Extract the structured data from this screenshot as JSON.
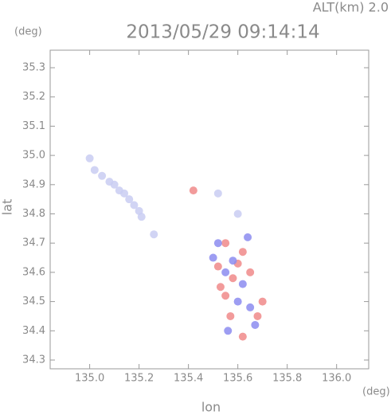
{
  "chart_data": {
    "type": "scatter",
    "title": "2013/05/29 09:14:14",
    "annotation": "ALT(km) 2.0",
    "y_unit": "(deg)",
    "x_unit": "(deg)",
    "ylabel": "lat",
    "xlabel": "lon",
    "xlim": [
      134.84,
      136.13
    ],
    "ylim": [
      34.27,
      35.36
    ],
    "xticks": [
      {
        "value": 135.0,
        "label": "135.0"
      },
      135.2,
      135.4,
      135.6,
      135.8,
      {
        "value": 136.0,
        "label": "136.0"
      }
    ],
    "yticks": [
      34.3,
      34.4,
      34.5,
      34.6,
      34.7,
      34.8,
      34.9,
      {
        "value": 35.0,
        "label": "35.0"
      },
      35.1,
      35.2,
      35.3
    ],
    "series": [
      {
        "color": "#c9ccf2",
        "x": [
          135.0,
          135.02,
          135.05,
          135.08,
          135.1,
          135.12,
          135.14,
          135.16,
          135.18,
          135.2,
          135.21,
          135.26,
          135.52,
          135.6
        ],
        "y": [
          34.99,
          34.95,
          34.93,
          34.91,
          34.9,
          34.88,
          34.87,
          34.85,
          34.83,
          34.81,
          34.79,
          34.73,
          34.87,
          34.8
        ]
      },
      {
        "color": "#f08a8a",
        "x": [
          135.42,
          135.55,
          135.62,
          135.52,
          135.58,
          135.65,
          135.55,
          135.68,
          135.62,
          135.57,
          135.7,
          135.6,
          135.53
        ],
        "y": [
          34.88,
          34.7,
          34.67,
          34.62,
          34.58,
          34.6,
          34.52,
          34.45,
          34.38,
          34.45,
          34.5,
          34.63,
          34.55
        ]
      },
      {
        "color": "#8c8cf0",
        "x": [
          135.52,
          135.58,
          135.62,
          135.55,
          135.6,
          135.65,
          135.67,
          135.5,
          135.56,
          135.64
        ],
        "y": [
          34.7,
          34.64,
          34.56,
          34.6,
          34.5,
          34.48,
          34.42,
          34.65,
          34.4,
          34.72
        ]
      }
    ]
  }
}
